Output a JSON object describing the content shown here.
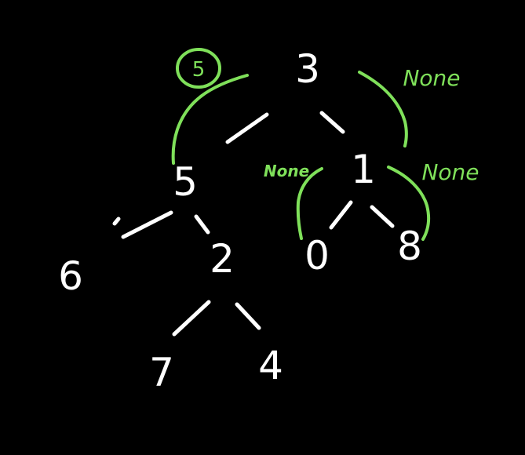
{
  "colors": {
    "background": "#000000",
    "chalk_white": "#ffffff",
    "annotation_green": "#7fe05a"
  },
  "tree": {
    "root": "3",
    "left": "5",
    "right": "1",
    "left_left": "6",
    "left_right": "2",
    "right_left": "0",
    "right_right": "8",
    "left_right_left": "7",
    "left_right_right": "4"
  },
  "annotations": {
    "root_circled_value": "5",
    "root_right_result": "None",
    "node1_left_result": "None",
    "node1_right_result": "None"
  }
}
